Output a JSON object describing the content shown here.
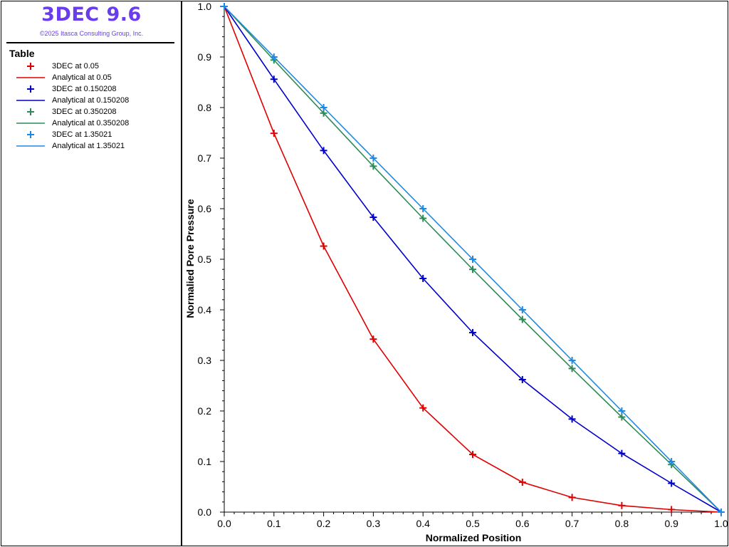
{
  "app": {
    "title": "3DEC 9.6",
    "copyright": "©2025 Itasca Consulting Group, Inc.",
    "brand_color": "#6a3cf0"
  },
  "legend": {
    "title": "Table",
    "items": [
      {
        "label": "3DEC at 0.05",
        "kind": "marker",
        "color": "#e00000"
      },
      {
        "label": "Analytical at 0.05",
        "kind": "line",
        "color": "#e00000"
      },
      {
        "label": "3DEC at 0.150208",
        "kind": "marker",
        "color": "#0000c8"
      },
      {
        "label": "Analytical at 0.150208",
        "kind": "line",
        "color": "#0000c8"
      },
      {
        "label": "3DEC at 0.350208",
        "kind": "marker",
        "color": "#2e8b57"
      },
      {
        "label": "Analytical at 0.350208",
        "kind": "line",
        "color": "#2e8b57"
      },
      {
        "label": "3DEC at 1.35021",
        "kind": "marker",
        "color": "#1e88e5"
      },
      {
        "label": "Analytical at 1.35021",
        "kind": "line",
        "color": "#1e88e5"
      }
    ]
  },
  "chart_data": {
    "type": "line",
    "title": "",
    "xlabel": "Normalized Position",
    "ylabel": "Normalied Pore Pressure",
    "xlim": [
      0.0,
      1.0
    ],
    "ylim": [
      0.0,
      1.0
    ],
    "x_ticks": [
      "0.0",
      "0.1",
      "0.2",
      "0.3",
      "0.4",
      "0.5",
      "0.6",
      "0.7",
      "0.8",
      "0.9",
      "1.0"
    ],
    "y_ticks": [
      "0.0",
      "0.1",
      "0.2",
      "0.3",
      "0.4",
      "0.5",
      "0.6",
      "0.7",
      "0.8",
      "0.9",
      "1.0"
    ],
    "grid": false,
    "x": [
      0.0,
      0.1,
      0.2,
      0.3,
      0.4,
      0.5,
      0.6,
      0.7,
      0.8,
      0.9,
      1.0
    ],
    "series": [
      {
        "name": "3DEC at 0.05",
        "style": "marker",
        "color": "#e00000",
        "values": [
          1.0,
          0.749,
          0.526,
          0.342,
          0.206,
          0.114,
          0.059,
          0.029,
          0.013,
          0.005,
          0.0
        ]
      },
      {
        "name": "Analytical at 0.05",
        "style": "line",
        "color": "#e00000",
        "values": [
          1.0,
          0.749,
          0.526,
          0.342,
          0.206,
          0.114,
          0.059,
          0.029,
          0.013,
          0.005,
          0.0
        ]
      },
      {
        "name": "3DEC at 0.150208",
        "style": "marker",
        "color": "#0000c8",
        "values": [
          1.0,
          0.856,
          0.715,
          0.583,
          0.462,
          0.355,
          0.262,
          0.184,
          0.116,
          0.057,
          0.0
        ]
      },
      {
        "name": "Analytical at 0.150208",
        "style": "line",
        "color": "#0000c8",
        "values": [
          1.0,
          0.856,
          0.715,
          0.583,
          0.462,
          0.355,
          0.262,
          0.184,
          0.116,
          0.057,
          0.0
        ]
      },
      {
        "name": "3DEC at 0.350208",
        "style": "marker",
        "color": "#2e8b57",
        "values": [
          1.0,
          0.894,
          0.789,
          0.684,
          0.581,
          0.48,
          0.381,
          0.284,
          0.188,
          0.094,
          0.0
        ]
      },
      {
        "name": "Analytical at 0.350208",
        "style": "line",
        "color": "#2e8b57",
        "values": [
          1.0,
          0.894,
          0.789,
          0.684,
          0.581,
          0.48,
          0.381,
          0.284,
          0.188,
          0.094,
          0.0
        ]
      },
      {
        "name": "3DEC at 1.35021",
        "style": "marker",
        "color": "#1e88e5",
        "values": [
          1.0,
          0.9,
          0.8,
          0.7,
          0.6,
          0.5,
          0.4,
          0.3,
          0.2,
          0.1,
          0.0
        ]
      },
      {
        "name": "Analytical at 1.35021",
        "style": "line",
        "color": "#1e88e5",
        "values": [
          1.0,
          0.9,
          0.8,
          0.7,
          0.6,
          0.5,
          0.4,
          0.3,
          0.2,
          0.1,
          0.0
        ]
      }
    ]
  }
}
